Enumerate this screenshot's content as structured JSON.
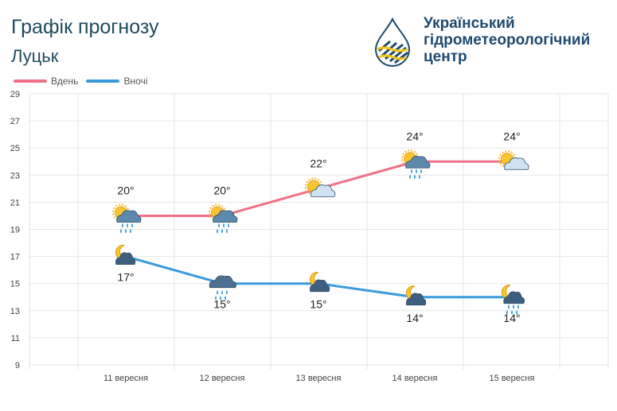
{
  "header": {
    "title": "Графік прогнозу",
    "city": "Луцьк",
    "org_line1": "Український",
    "org_line2": "гідрометеорологічний",
    "org_line3": "центр"
  },
  "colors": {
    "day": "#f0708a",
    "night": "#3a9bdc",
    "grid": "#e6e6e6",
    "text": "#333333"
  },
  "chart_data": {
    "type": "line",
    "categories": [
      "11 вересня",
      "12 вересня",
      "13 вересня",
      "14 вересня",
      "15 вересня"
    ],
    "series": [
      {
        "name": "Вдень",
        "values": [
          20,
          20,
          22,
          24,
          24
        ],
        "labels": [
          "20°",
          "20°",
          "22°",
          "24°",
          "24°"
        ],
        "icons": [
          "sun-cloud-rain-icon",
          "sun-cloud-rain-icon",
          "sun-cloud-icon",
          "sun-cloud-rain-icon",
          "sun-cloud-icon"
        ]
      },
      {
        "name": "Вночі",
        "values": [
          17,
          15,
          15,
          14,
          14
        ],
        "labels": [
          "17°",
          "15°",
          "15°",
          "14°",
          "14°"
        ],
        "icons": [
          "moon-cloud-icon",
          "cloud-rain-icon",
          "moon-cloud-icon",
          "moon-cloud-icon",
          "moon-cloud-rain-icon"
        ]
      }
    ],
    "ylim": [
      9,
      29
    ],
    "yticks": [
      9,
      11,
      13,
      15,
      17,
      19,
      21,
      23,
      25,
      27,
      29
    ],
    "grid": true,
    "legend": "top-left"
  }
}
